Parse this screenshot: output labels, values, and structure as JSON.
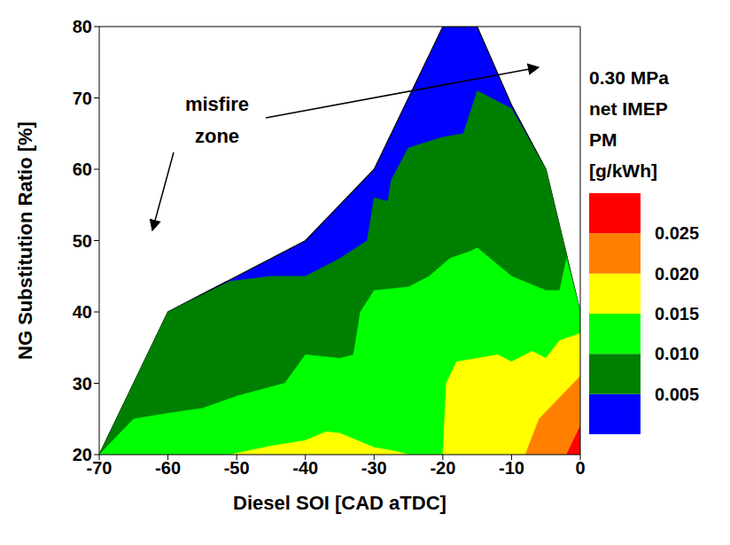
{
  "chart_data": {
    "type": "contour",
    "x_label": "Diesel SOI [CAD aTDC]",
    "y_label": "NG Substitution Ratio [%]",
    "xlim": [
      -70,
      0
    ],
    "xticks": [
      -70,
      -60,
      -50,
      -40,
      -30,
      -20,
      -10,
      0
    ],
    "ylim": [
      20,
      80
    ],
    "yticks": [
      20,
      30,
      40,
      50,
      60,
      70,
      80
    ],
    "annotation": [
      "misfire",
      "zone"
    ],
    "colorbar": {
      "title": [
        "0.30 MPa",
        "net IMEP",
        "PM",
        "[g/kWh]"
      ],
      "range": [
        0,
        0.03
      ],
      "ticks": [
        0.005,
        {
          "value": 0.01,
          "label": "0.010"
        },
        0.015,
        {
          "value": 0.02,
          "label": "0.020"
        },
        0.025
      ],
      "colors": [
        "#0000ff",
        "#008000",
        "#00ff00",
        "#ffff00",
        "#ff8000",
        "#ff0000"
      ]
    },
    "regions": [
      {
        "color": "#0000ff",
        "x": [
          -70,
          -60,
          -40,
          -30,
          -20,
          -15,
          -10,
          -5,
          0
        ],
        "y": [
          20,
          40,
          50,
          60,
          80,
          80,
          69,
          60,
          40
        ]
      },
      {
        "color": "#008000",
        "x": [
          -70,
          -60,
          -51,
          -45,
          -40,
          -35,
          -31,
          -30,
          -28,
          -27.5,
          -25,
          -20,
          -17,
          -15,
          -13,
          -10,
          -5,
          0
        ],
        "y": [
          20,
          40,
          44.3,
          45,
          45,
          47.5,
          50,
          56,
          55.5,
          58.5,
          63,
          64.5,
          65,
          71,
          70,
          68.5,
          60,
          40
        ]
      },
      {
        "color": "#00ff00",
        "x": [
          -70,
          -65,
          -60,
          -55,
          -50,
          -45,
          -43,
          -40,
          -35,
          -33,
          -32,
          -30,
          -25,
          -22,
          -19,
          -16,
          -15,
          -10,
          -5,
          -3,
          -2,
          0
        ],
        "y": [
          20,
          25,
          25.8,
          26.5,
          28.2,
          29.5,
          30,
          34,
          33.5,
          34,
          40,
          43,
          43.5,
          45,
          47.5,
          48.5,
          49,
          45,
          43,
          43,
          47.5,
          40
        ]
      },
      {
        "color": "#ffff00",
        "x": [
          -51,
          -45,
          -40,
          -37,
          -35,
          -30,
          -27,
          -25,
          -20,
          -19.5,
          -18,
          -15,
          -12,
          -10,
          -7,
          -5,
          -3,
          0
        ],
        "y": [
          20,
          21.2,
          22,
          23.2,
          23,
          21,
          20.5,
          20,
          20,
          30,
          33,
          33.5,
          34,
          33,
          34.5,
          33.5,
          36,
          37
        ]
      },
      {
        "color": "#ff8000",
        "x": [
          -8,
          -6,
          -3,
          0
        ],
        "y": [
          20,
          25,
          28,
          31
        ]
      },
      {
        "color": "#ff0000",
        "x": [
          -2,
          0
        ],
        "y": [
          20,
          24
        ]
      }
    ]
  }
}
